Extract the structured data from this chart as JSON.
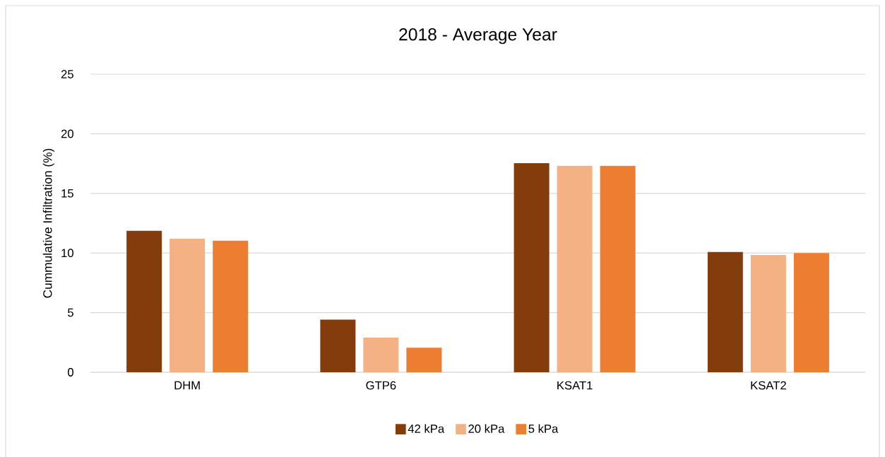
{
  "chart_data": {
    "type": "bar",
    "title": "2018 - Average Year",
    "ylabel": "Cummulative Infiltration (%)",
    "categories": [
      "DHM",
      "GTP6",
      "KSAT1",
      "KSAT2"
    ],
    "series": [
      {
        "name": "42 kPa",
        "color": "#843c0c",
        "values": [
          11.86,
          4.42,
          17.54,
          10.08
        ]
      },
      {
        "name": "20 kPa",
        "color": "#f4b183",
        "values": [
          11.2,
          2.9,
          17.31,
          9.83
        ]
      },
      {
        "name": "5 kPa",
        "color": "#ed7d31",
        "values": [
          11.04,
          2.06,
          17.31,
          10.0
        ]
      }
    ],
    "ylim": [
      0,
      25
    ],
    "yticks": [
      0,
      5,
      10,
      15,
      20,
      25
    ],
    "grid": "y",
    "legend": "bottom"
  }
}
